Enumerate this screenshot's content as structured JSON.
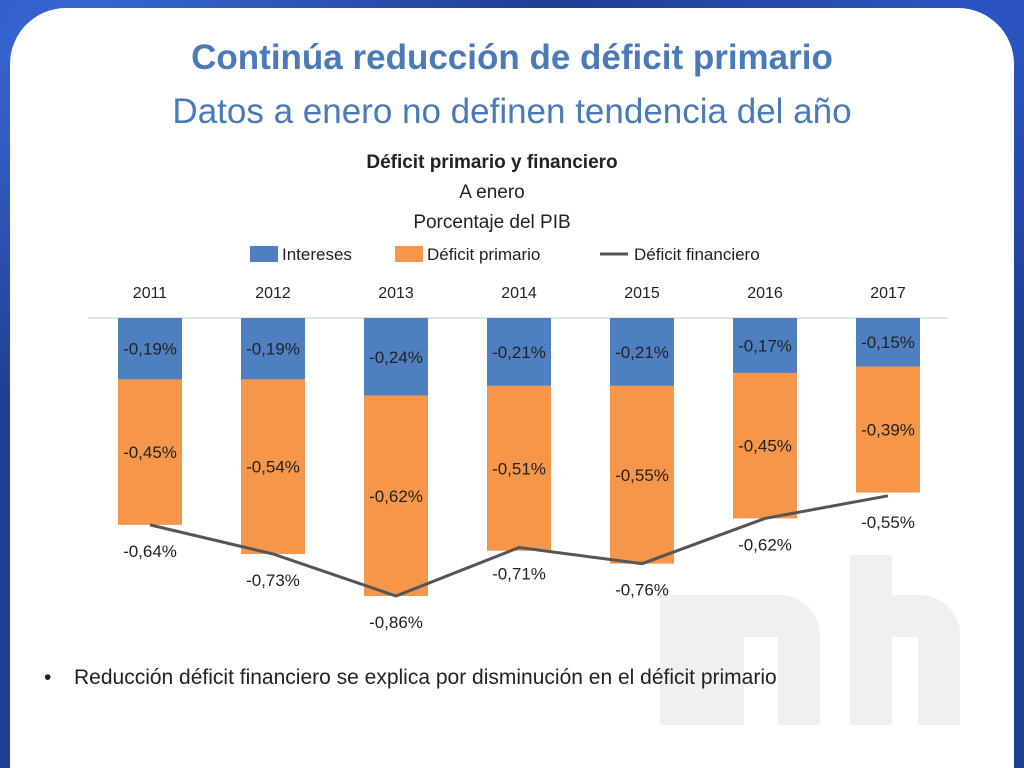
{
  "slide": {
    "title": "Continúa reducción de  déficit primario",
    "subtitle": "Datos a enero no definen tendencia del año",
    "bullet_symbol": "•",
    "bullet_text": "Reducción déficit financiero se explica por disminución  en el déficit primario"
  },
  "colors": {
    "intereses": "#4e7fc1",
    "deficit_primario": "#f5964a",
    "deficit_financiero": "#555555",
    "title": "#4a7ab8"
  },
  "chart_data": {
    "type": "bar",
    "stacked": true,
    "title": "Déficit primario y financiero",
    "subtitle_lines": [
      "A enero",
      "Porcentaje del PIB"
    ],
    "legend_position": "top",
    "category_axis_position": "top",
    "categories": [
      "2011",
      "2012",
      "2013",
      "2014",
      "2015",
      "2016",
      "2017"
    ],
    "series": [
      {
        "name": "Intereses",
        "kind": "bar",
        "values": [
          -0.19,
          -0.19,
          -0.24,
          -0.21,
          -0.21,
          -0.17,
          -0.15
        ],
        "labels": [
          "-0,19%",
          "-0,19%",
          "-0,24%",
          "-0,21%",
          "-0,21%",
          "-0,17%",
          "-0,15%"
        ]
      },
      {
        "name": "Déficit primario",
        "kind": "bar",
        "values": [
          -0.45,
          -0.54,
          -0.62,
          -0.51,
          -0.55,
          -0.45,
          -0.39
        ],
        "labels": [
          "-0,45%",
          "-0,54%",
          "-0,62%",
          "-0,51%",
          "-0,55%",
          "-0,45%",
          "-0,39%"
        ]
      },
      {
        "name": "Déficit financiero",
        "kind": "line",
        "values": [
          -0.64,
          -0.73,
          -0.86,
          -0.71,
          -0.76,
          -0.62,
          -0.55
        ],
        "labels": [
          "-0,64%",
          "-0,73%",
          "-0,86%",
          "-0,71%",
          "-0,76%",
          "-0,62%",
          "-0,55%"
        ]
      }
    ],
    "ylim": [
      -0.86,
      0
    ],
    "grid": false
  }
}
